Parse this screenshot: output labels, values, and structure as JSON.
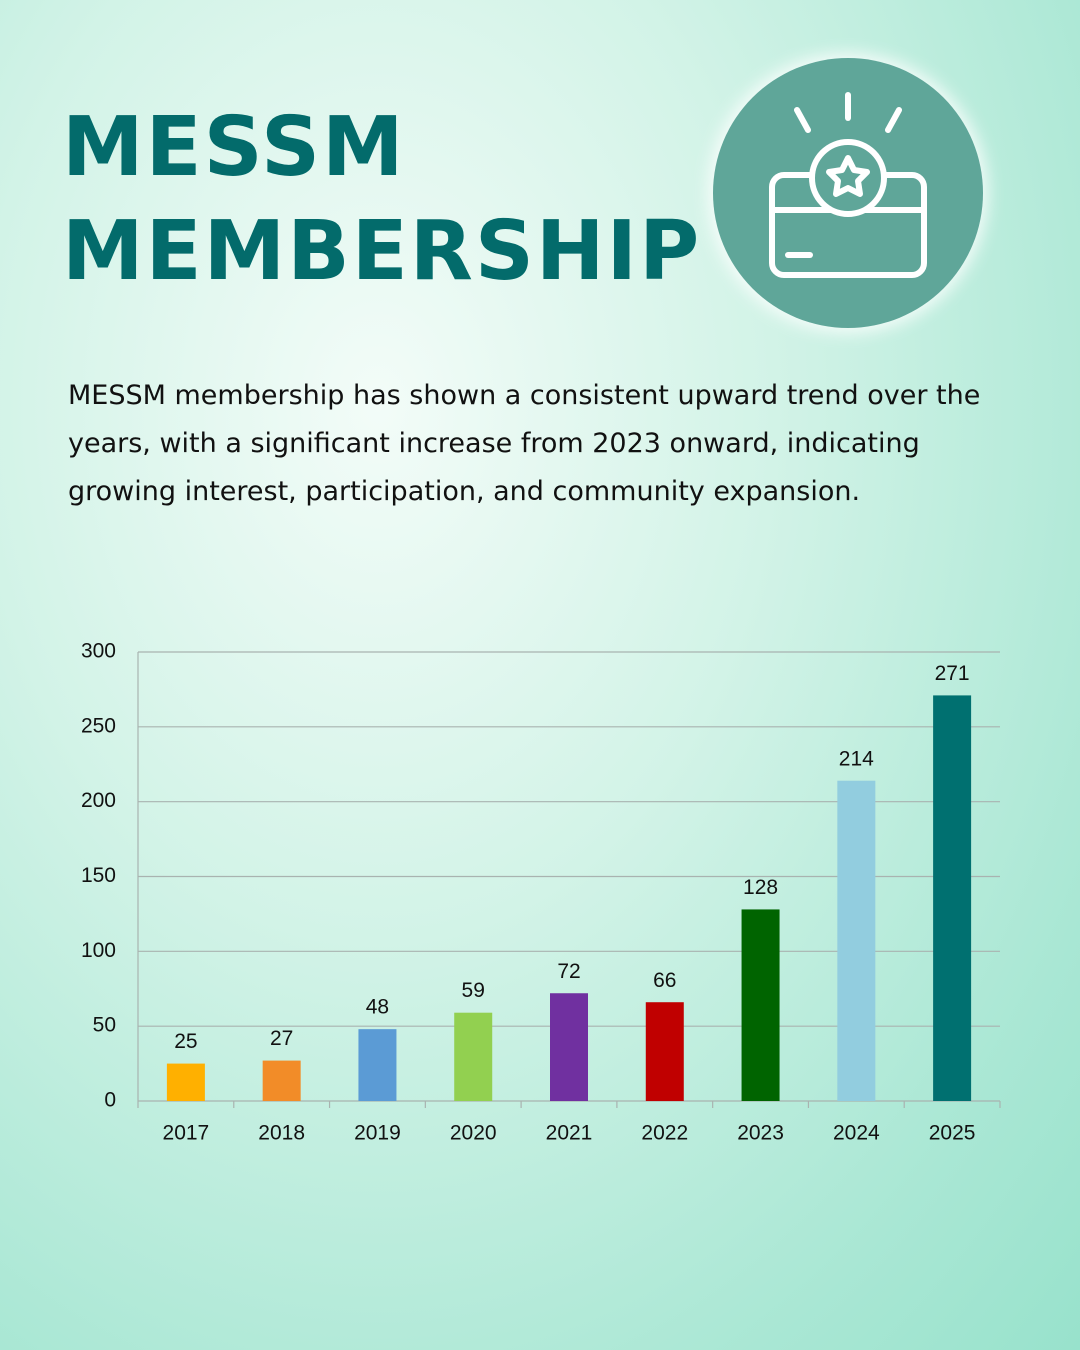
{
  "chart_data": {
    "type": "bar",
    "title": "MESSM MEMBERSHIP",
    "description": "MESSM membership has shown a consistent upward trend over the years, with a significant increase from 2023 onward, indicating growing interest, participation, and community expansion.",
    "categories": [
      "2017",
      "2018",
      "2019",
      "2020",
      "2021",
      "2022",
      "2023",
      "2024",
      "2025"
    ],
    "values": [
      25,
      27,
      48,
      59,
      72,
      66,
      128,
      214,
      271
    ],
    "colors": [
      "#ffb000",
      "#f28c28",
      "#5b9bd5",
      "#92d050",
      "#7030a0",
      "#c00000",
      "#006400",
      "#92cddf",
      "#007070"
    ],
    "ylim": [
      0,
      300
    ],
    "yticks": [
      0,
      50,
      100,
      150,
      200,
      250,
      300
    ],
    "grid": true
  }
}
